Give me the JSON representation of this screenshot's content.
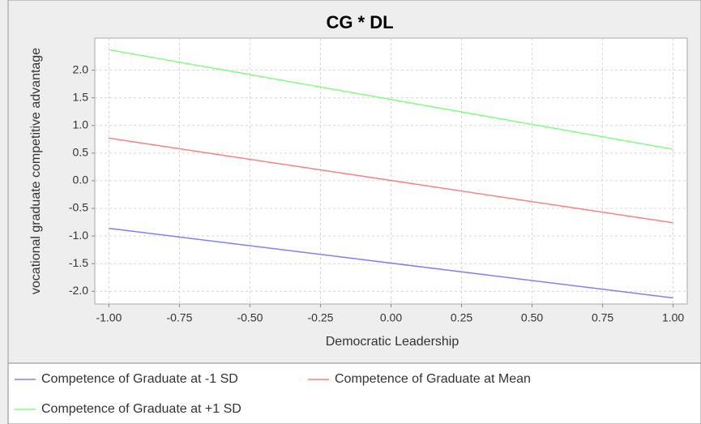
{
  "chart_data": {
    "type": "line",
    "title": "CG * DL",
    "x_label": "Democratic Leadership",
    "y_label": "vocational graduate competitive advantage",
    "x": [
      -1,
      1
    ],
    "series": [
      {
        "name": "Competence of Graduate at -1 SD",
        "color": "#8080ff",
        "values": [
          -0.86,
          -2.12
        ]
      },
      {
        "name": "Competence of Graduate at Mean",
        "color": "#ff8080",
        "values": [
          0.77,
          -0.76
        ]
      },
      {
        "name": "Competence of Graduate at +1 SD",
        "color": "#80ff80",
        "values": [
          2.37,
          0.57
        ]
      }
    ],
    "xlim": [
      -1.05,
      1.05
    ],
    "xticks": [
      {
        "value": -1,
        "label": "-1.00"
      },
      {
        "value": -0.75,
        "label": "-0.75"
      },
      {
        "value": -0.5,
        "label": "-0.50"
      },
      {
        "value": -0.25,
        "label": "-0.25"
      },
      {
        "value": 0,
        "label": "0.00"
      },
      {
        "value": 0.25,
        "label": "0.25"
      },
      {
        "value": 0.5,
        "label": "0.50"
      },
      {
        "value": 0.75,
        "label": "0.75"
      },
      {
        "value": 1,
        "label": "1.00"
      }
    ],
    "ylim": [
      -2.23,
      2.58
    ],
    "yticks": [
      {
        "value": -2,
        "label": "-2.0"
      },
      -1.5,
      {
        "value": -1,
        "label": "-1.0"
      },
      -0.5,
      {
        "value": 0,
        "label": "0.0"
      },
      0.5,
      {
        "value": 1,
        "label": "1.0"
      },
      1.5,
      {
        "value": 2,
        "label": "2.0"
      }
    ],
    "grid": true,
    "legend": "bottom"
  }
}
